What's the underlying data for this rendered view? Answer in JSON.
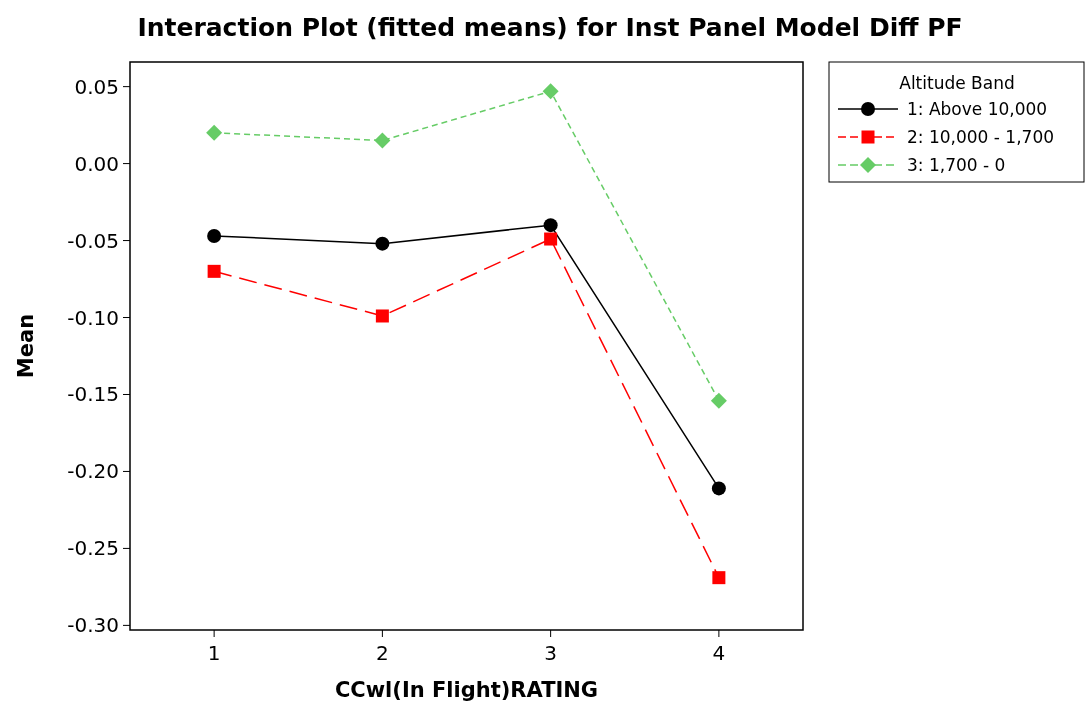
{
  "chart_data": {
    "type": "line",
    "title": "Interaction Plot (fitted means) for Inst Panel Model Diff PF",
    "xlabel": "CCwl(In Flight)RATING",
    "ylabel": "Mean",
    "legend_title": "Altitude Band",
    "legend": "right",
    "grid": false,
    "x": [
      1,
      2,
      3,
      4
    ],
    "xlim": [
      0.5,
      4.5
    ],
    "xticks": [
      1,
      2,
      3,
      4
    ],
    "ylim": [
      -0.303,
      0.066
    ],
    "yticks": [
      {
        "value": 0.05,
        "label": "0.05"
      },
      {
        "value": 0,
        "label": "0.00"
      },
      {
        "value": -0.05,
        "label": "-0.05"
      },
      {
        "value": -0.1,
        "label": "-0.10"
      },
      {
        "value": -0.15,
        "label": "-0.15"
      },
      {
        "value": -0.2,
        "label": "-0.20"
      },
      {
        "value": -0.25,
        "label": "-0.25"
      },
      {
        "value": -0.3,
        "label": "-0.30"
      }
    ],
    "series": [
      {
        "name": "1: Above 10,000",
        "color": "#000000",
        "marker": "circle",
        "line_style": "solid",
        "values": [
          -0.047,
          -0.052,
          -0.04,
          -0.211
        ]
      },
      {
        "name": "2: 10,000 - 1,700",
        "color": "#ff0000",
        "marker": "square",
        "line_style": "dashed",
        "values": [
          -0.07,
          -0.099,
          -0.049,
          -0.269
        ]
      },
      {
        "name": "3: 1,700 - 0",
        "color": "#66cc66",
        "marker": "diamond",
        "line_style": "dotted",
        "values": [
          0.02,
          0.015,
          0.047,
          -0.154
        ]
      }
    ]
  }
}
